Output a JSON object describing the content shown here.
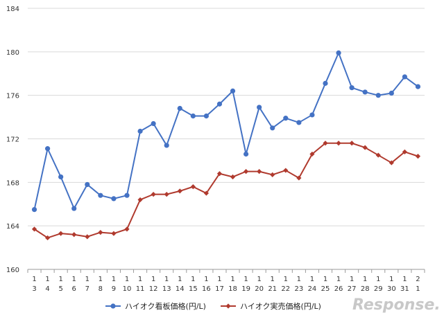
{
  "chart_data": {
    "type": "line",
    "categories": [
      [
        "1",
        "3"
      ],
      [
        "1",
        "4"
      ],
      [
        "1",
        "5"
      ],
      [
        "1",
        "6"
      ],
      [
        "1",
        "7"
      ],
      [
        "1",
        "8"
      ],
      [
        "1",
        "9"
      ],
      [
        "1",
        "10"
      ],
      [
        "1",
        "11"
      ],
      [
        "1",
        "12"
      ],
      [
        "1",
        "13"
      ],
      [
        "1",
        "14"
      ],
      [
        "1",
        "15"
      ],
      [
        "1",
        "16"
      ],
      [
        "1",
        "17"
      ],
      [
        "1",
        "18"
      ],
      [
        "1",
        "19"
      ],
      [
        "1",
        "20"
      ],
      [
        "1",
        "21"
      ],
      [
        "1",
        "22"
      ],
      [
        "1",
        "23"
      ],
      [
        "1",
        "24"
      ],
      [
        "1",
        "25"
      ],
      [
        "1",
        "26"
      ],
      [
        "1",
        "27"
      ],
      [
        "1",
        "28"
      ],
      [
        "1",
        "29"
      ],
      [
        "1",
        "30"
      ],
      [
        "1",
        "31"
      ],
      [
        "2",
        "1"
      ]
    ],
    "ylim": [
      160,
      184
    ],
    "yticks": [
      160,
      164,
      168,
      172,
      176,
      180,
      184
    ],
    "grid": true,
    "legend_position": "bottom",
    "series": [
      {
        "name": "ハイオク看板価格(円/L)",
        "color": "#4472c4",
        "marker": "circle",
        "values": [
          165.5,
          171.1,
          168.5,
          165.6,
          167.8,
          166.8,
          166.5,
          166.8,
          172.7,
          173.4,
          171.4,
          174.8,
          174.1,
          174.1,
          175.2,
          176.4,
          170.6,
          174.9,
          173.0,
          173.9,
          173.5,
          174.2,
          177.1,
          179.9,
          176.7,
          176.3,
          176.0,
          176.2,
          177.7,
          176.8
        ]
      },
      {
        "name": "ハイオク実売価格(円/L)",
        "color": "#b03a2e",
        "marker": "diamond",
        "values": [
          163.7,
          162.9,
          163.3,
          163.2,
          163.0,
          163.4,
          163.3,
          163.7,
          166.4,
          166.9,
          166.9,
          167.2,
          167.6,
          167.0,
          168.8,
          168.5,
          169.0,
          169.0,
          168.7,
          169.1,
          168.4,
          170.6,
          171.6,
          171.6,
          171.6,
          171.2,
          170.5,
          169.8,
          170.8,
          170.4
        ]
      }
    ]
  },
  "watermark": "Response."
}
